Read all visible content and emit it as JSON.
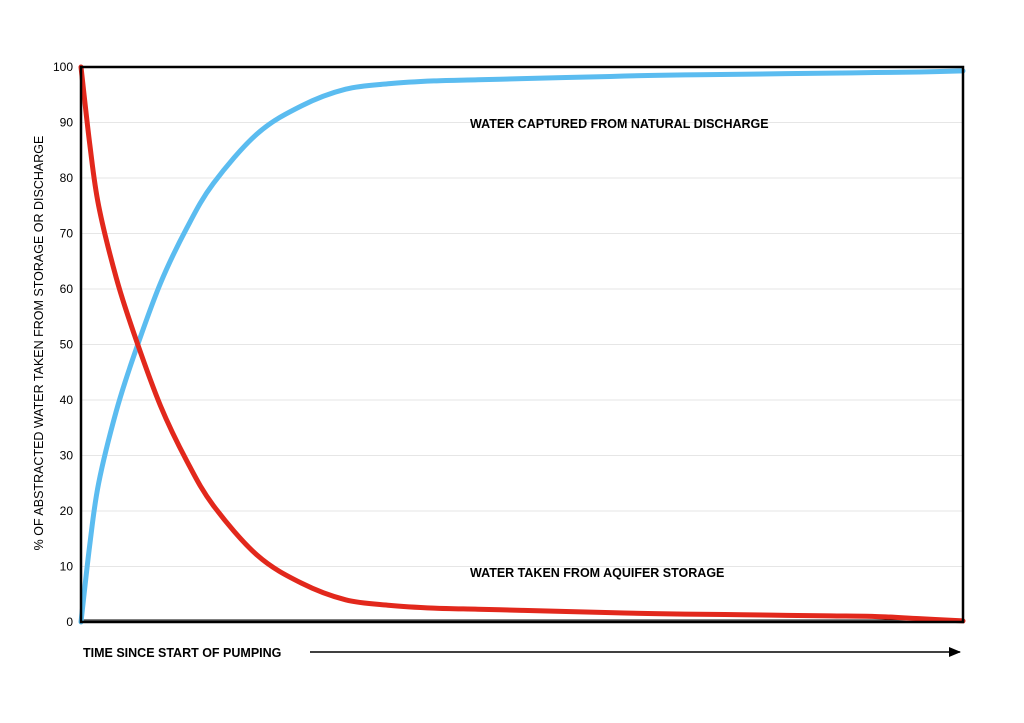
{
  "chart_data": {
    "type": "line",
    "title": "",
    "xlabel": "TIME SINCE START OF PUMPING",
    "ylabel": "% OF ABSTRACTED WATER TAKEN FROM STORAGE OR DISCHARGE",
    "ylim": [
      0,
      100
    ],
    "xlim": [
      0,
      100
    ],
    "x_ticks_shown": false,
    "y_ticks": [
      "0",
      "10",
      "20",
      "30",
      "40",
      "50",
      "60",
      "70",
      "80",
      "90",
      "100"
    ],
    "grid": "horizontal",
    "x": [
      0,
      1,
      2,
      4,
      6,
      9,
      12,
      15,
      20,
      25,
      30,
      35,
      40,
      45,
      50,
      55,
      60,
      65,
      70,
      75,
      80,
      85,
      90,
      95,
      100
    ],
    "series": [
      {
        "name": "WATER CAPTURED FROM NATURAL DISCHARGE",
        "color": "#5bbcf0",
        "values": [
          0,
          14,
          25,
          38,
          48,
          61,
          71,
          79,
          88,
          93,
          96,
          97,
          97.5,
          97.7,
          97.9,
          98.1,
          98.3,
          98.5,
          98.6,
          98.7,
          98.8,
          98.9,
          99,
          99.1,
          99.3
        ]
      },
      {
        "name": "WATER TAKEN FROM AQUIFER STORAGE",
        "color": "#e2281c",
        "values": [
          100,
          86,
          75,
          62,
          52,
          39,
          29,
          21,
          12,
          7,
          4,
          3,
          2.5,
          2.3,
          2.1,
          1.9,
          1.7,
          1.5,
          1.4,
          1.3,
          1.2,
          1.1,
          1.0,
          0.6,
          0.2
        ]
      }
    ],
    "annotations": [
      {
        "text": "WATER CAPTURED FROM NATURAL DISCHARGE",
        "series": 0
      },
      {
        "text": "WATER TAKEN FROM AQUIFER STORAGE",
        "series": 1
      }
    ],
    "colors": {
      "frame": "#000000",
      "grid": "#e6e6e6",
      "discharge_line": "#5bbcf0",
      "storage_line": "#e2281c"
    }
  }
}
